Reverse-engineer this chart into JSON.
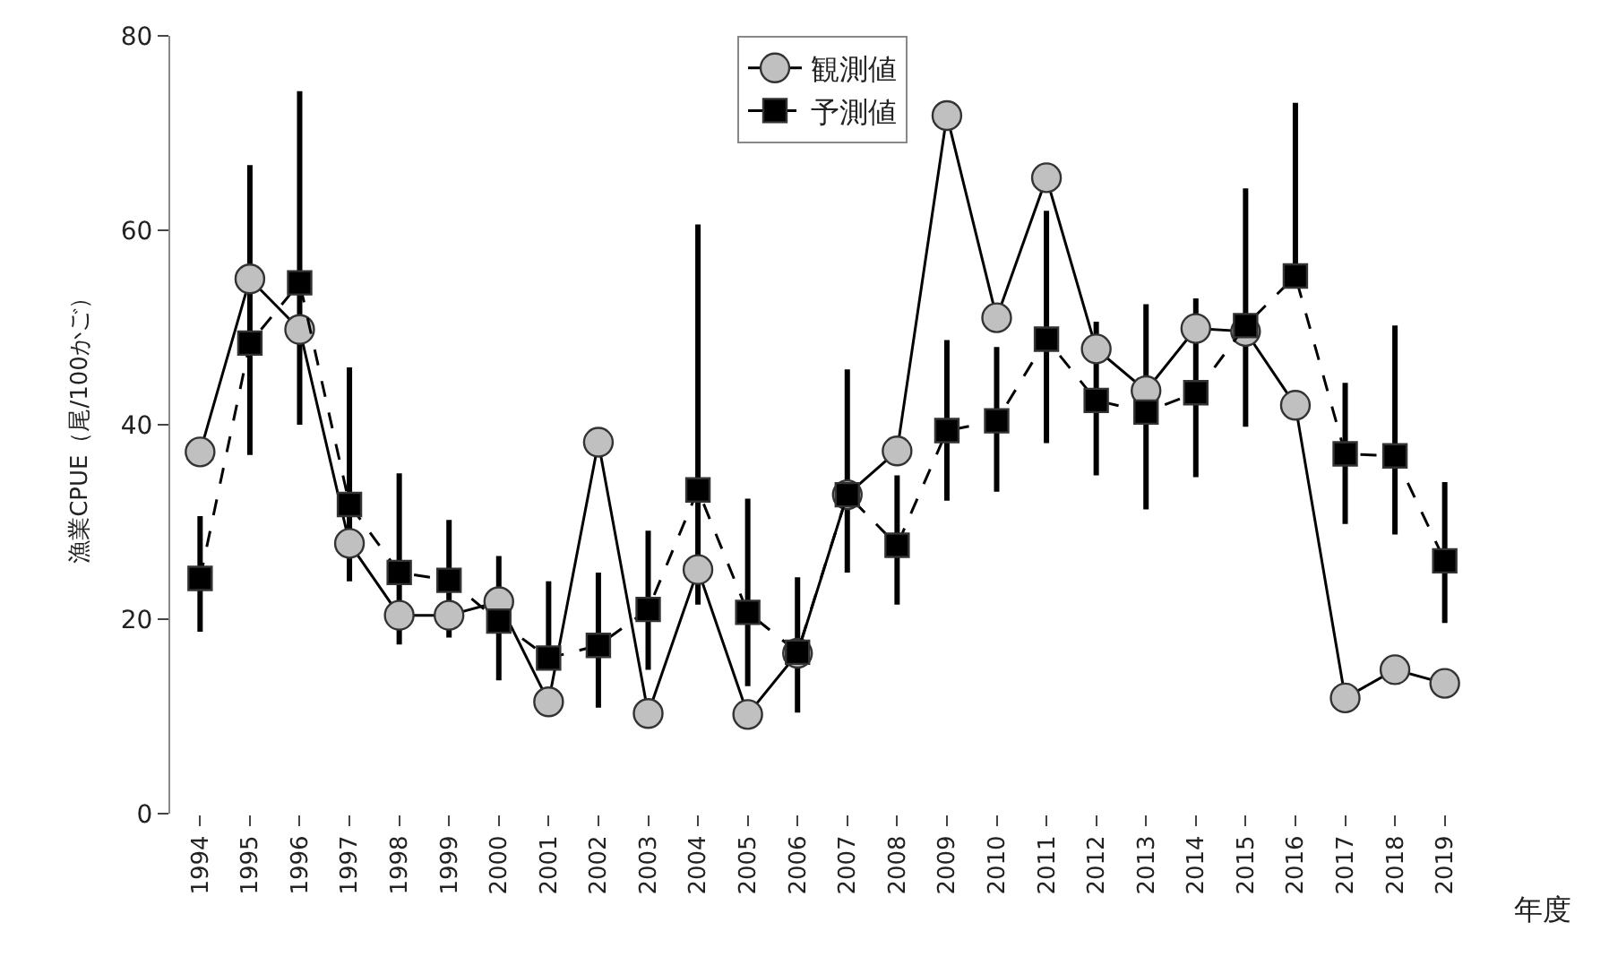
{
  "chart_data": {
    "type": "line",
    "xlabel": "年度",
    "ylabel": "漁業CPUE（尾/100かご）",
    "categories": [
      "1994",
      "1995",
      "1996",
      "1997",
      "1998",
      "1999",
      "2000",
      "2001",
      "2002",
      "2003",
      "2004",
      "2005",
      "2006",
      "2007",
      "2008",
      "2009",
      "2010",
      "2011",
      "2012",
      "2013",
      "2014",
      "2015",
      "2016",
      "2017",
      "2018",
      "2019"
    ],
    "ylim": [
      0,
      80
    ],
    "yticks": [
      0,
      20,
      40,
      60,
      80
    ],
    "legend": "top",
    "series": [
      {
        "name": "観測値",
        "color": "#c0c0c0",
        "marker": "circle",
        "line_style": "solid",
        "values": [
          37.2,
          55,
          49.8,
          27.8,
          20.4,
          20.4,
          21.8,
          11.5,
          38.2,
          10.3,
          25.1,
          10.2,
          16.5,
          32.8,
          37.3,
          71.8,
          51,
          65.4,
          47.8,
          43.5,
          49.9,
          49.6,
          42,
          11.9,
          14.8,
          13.4
        ]
      },
      {
        "name": "予測値",
        "color": "#000000",
        "marker": "square",
        "line_style": "dashed",
        "values": [
          24.2,
          48.4,
          54.6,
          31.8,
          24.8,
          24,
          19.8,
          16,
          17.3,
          21,
          33.3,
          20.7,
          16.6,
          32.8,
          27.6,
          39.4,
          40.4,
          48.8,
          42.5,
          41.3,
          43.3,
          50.2,
          55.3,
          37,
          36.8,
          26
        ],
        "errors": [
          [
            18.7,
            30.6
          ],
          [
            36.9,
            66.7
          ],
          [
            40,
            74.3
          ],
          [
            23.9,
            45.9
          ],
          [
            17.4,
            35
          ],
          [
            18.1,
            30.2
          ],
          [
            13.7,
            26.5
          ],
          [
            16,
            23.9
          ],
          [
            10.9,
            24.8
          ],
          [
            14.8,
            29.1
          ],
          [
            21.5,
            60.6
          ],
          [
            13.1,
            32.4
          ],
          [
            10.4,
            24.3
          ],
          [
            24.8,
            45.7
          ],
          [
            21.5,
            34.8
          ],
          [
            32.2,
            48.7
          ],
          [
            33.1,
            48
          ],
          [
            38.1,
            62
          ],
          [
            34.8,
            50.6
          ],
          [
            31.3,
            52.4
          ],
          [
            34.6,
            53
          ],
          [
            39.8,
            64.3
          ],
          [
            55.3,
            73.1
          ],
          [
            29.8,
            44.3
          ],
          [
            28.7,
            50.2
          ],
          [
            19.6,
            34.1
          ]
        ]
      }
    ]
  }
}
